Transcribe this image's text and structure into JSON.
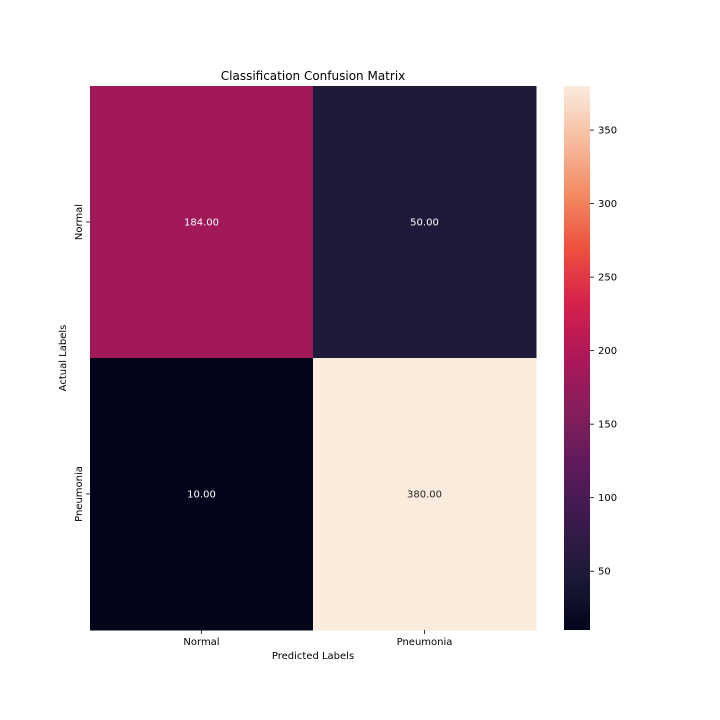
{
  "chart_data": {
    "type": "heatmap",
    "title": "Classification Confusion Matrix",
    "xlabel": "Predicted Labels",
    "ylabel": "Actual Labels",
    "x_categories": [
      "Normal",
      "Pneumonia"
    ],
    "y_categories": [
      "Normal",
      "Pneumonia"
    ],
    "values": [
      [
        184.0,
        50.0
      ],
      [
        10.0,
        380.0
      ]
    ],
    "cell_labels": [
      [
        "184.00",
        "50.00"
      ],
      [
        "10.00",
        "380.00"
      ]
    ],
    "colorbar": {
      "range": [
        10,
        380
      ],
      "ticks": [
        50,
        100,
        150,
        200,
        250,
        300,
        350
      ],
      "tick_labels": [
        "50",
        "100",
        "150",
        "200",
        "250",
        "300",
        "350"
      ],
      "colormap": "rocket"
    },
    "grid": false,
    "legend": "colorbar-right"
  }
}
